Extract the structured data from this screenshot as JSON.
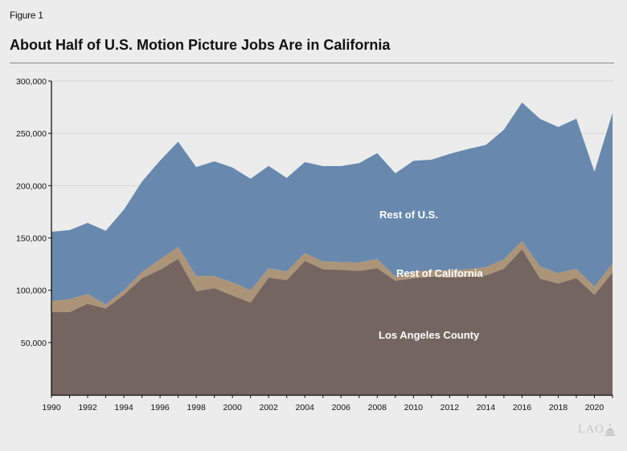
{
  "figure_label": "Figure 1",
  "title": "About Half of U.S. Motion Picture Jobs Are in California",
  "logo_text": "LAO",
  "colors": {
    "background": "#ebeceb",
    "rest_of_us": "#6888ae",
    "rest_of_california": "#ab9478",
    "los_angeles_county": "#756560",
    "gridline": "#d4d5d4",
    "axis": "#111111"
  },
  "chart_data": {
    "type": "area",
    "stacked": true,
    "title": "About Half of U.S. Motion Picture Jobs Are in California",
    "xlabel": "",
    "ylabel": "",
    "x": [
      1990,
      1991,
      1992,
      1993,
      1994,
      1995,
      1996,
      1997,
      1998,
      1999,
      2000,
      2001,
      2002,
      2003,
      2004,
      2005,
      2006,
      2007,
      2008,
      2009,
      2010,
      2011,
      2012,
      2013,
      2014,
      2015,
      2016,
      2017,
      2018,
      2019,
      2020,
      2021
    ],
    "xlim": [
      1990,
      2021
    ],
    "ylim": [
      0,
      300000
    ],
    "grid": true,
    "x_tick_labels": [
      "1990",
      "1992",
      "1994",
      "1996",
      "1998",
      "2000",
      "2002",
      "2004",
      "2006",
      "2008",
      "2010",
      "2012",
      "2014",
      "2016",
      "2018",
      "2020"
    ],
    "y_tick_labels": [
      "50,000",
      "100,000",
      "150,000",
      "200,000",
      "250,000",
      "300,000"
    ],
    "y_ticks": [
      50000,
      100000,
      150000,
      200000,
      250000,
      300000
    ],
    "series": [
      {
        "name": "Los Angeles County",
        "values": [
          79000,
          79000,
          87000,
          82500,
          95500,
          111500,
          119500,
          130000,
          99000,
          102000,
          95000,
          88000,
          112000,
          109500,
          128000,
          120000,
          119500,
          118500,
          121000,
          109000,
          111500,
          113000,
          112000,
          113000,
          114000,
          120500,
          139000,
          111000,
          106500,
          111500,
          95500,
          117000
        ]
      },
      {
        "name": "Rest of California",
        "values": [
          10500,
          12500,
          9500,
          4000,
          4500,
          6000,
          10000,
          11500,
          14500,
          11500,
          12500,
          12000,
          9000,
          8500,
          7500,
          7500,
          7500,
          8000,
          9000,
          4000,
          6500,
          6000,
          7000,
          7000,
          8000,
          9000,
          8000,
          11500,
          10000,
          9000,
          8000,
          8500
        ]
      },
      {
        "name": "Rest of U.S.",
        "values": [
          66300,
          66000,
          67900,
          70300,
          77000,
          86400,
          94500,
          100500,
          104200,
          109800,
          109900,
          106600,
          97900,
          89400,
          87000,
          91200,
          91700,
          95000,
          101200,
          98800,
          105700,
          105800,
          111400,
          115000,
          116900,
          124000,
          132500,
          141200,
          139500,
          143500,
          109800,
          144100
        ]
      }
    ],
    "totals": [
      155800,
      157500,
      164400,
      156800,
      177000,
      203900,
      224000,
      242000,
      217700,
      223300,
      217400,
      206600,
      218900,
      207400,
      222500,
      218700,
      218700,
      221500,
      231200,
      211800,
      223700,
      224800,
      230400,
      235000,
      238900,
      253500,
      279500,
      263700,
      256000,
      264000,
      213300,
      269600
    ],
    "annotations": [
      "Rest of U.S.",
      "Rest of California",
      "Los Angeles County"
    ]
  }
}
